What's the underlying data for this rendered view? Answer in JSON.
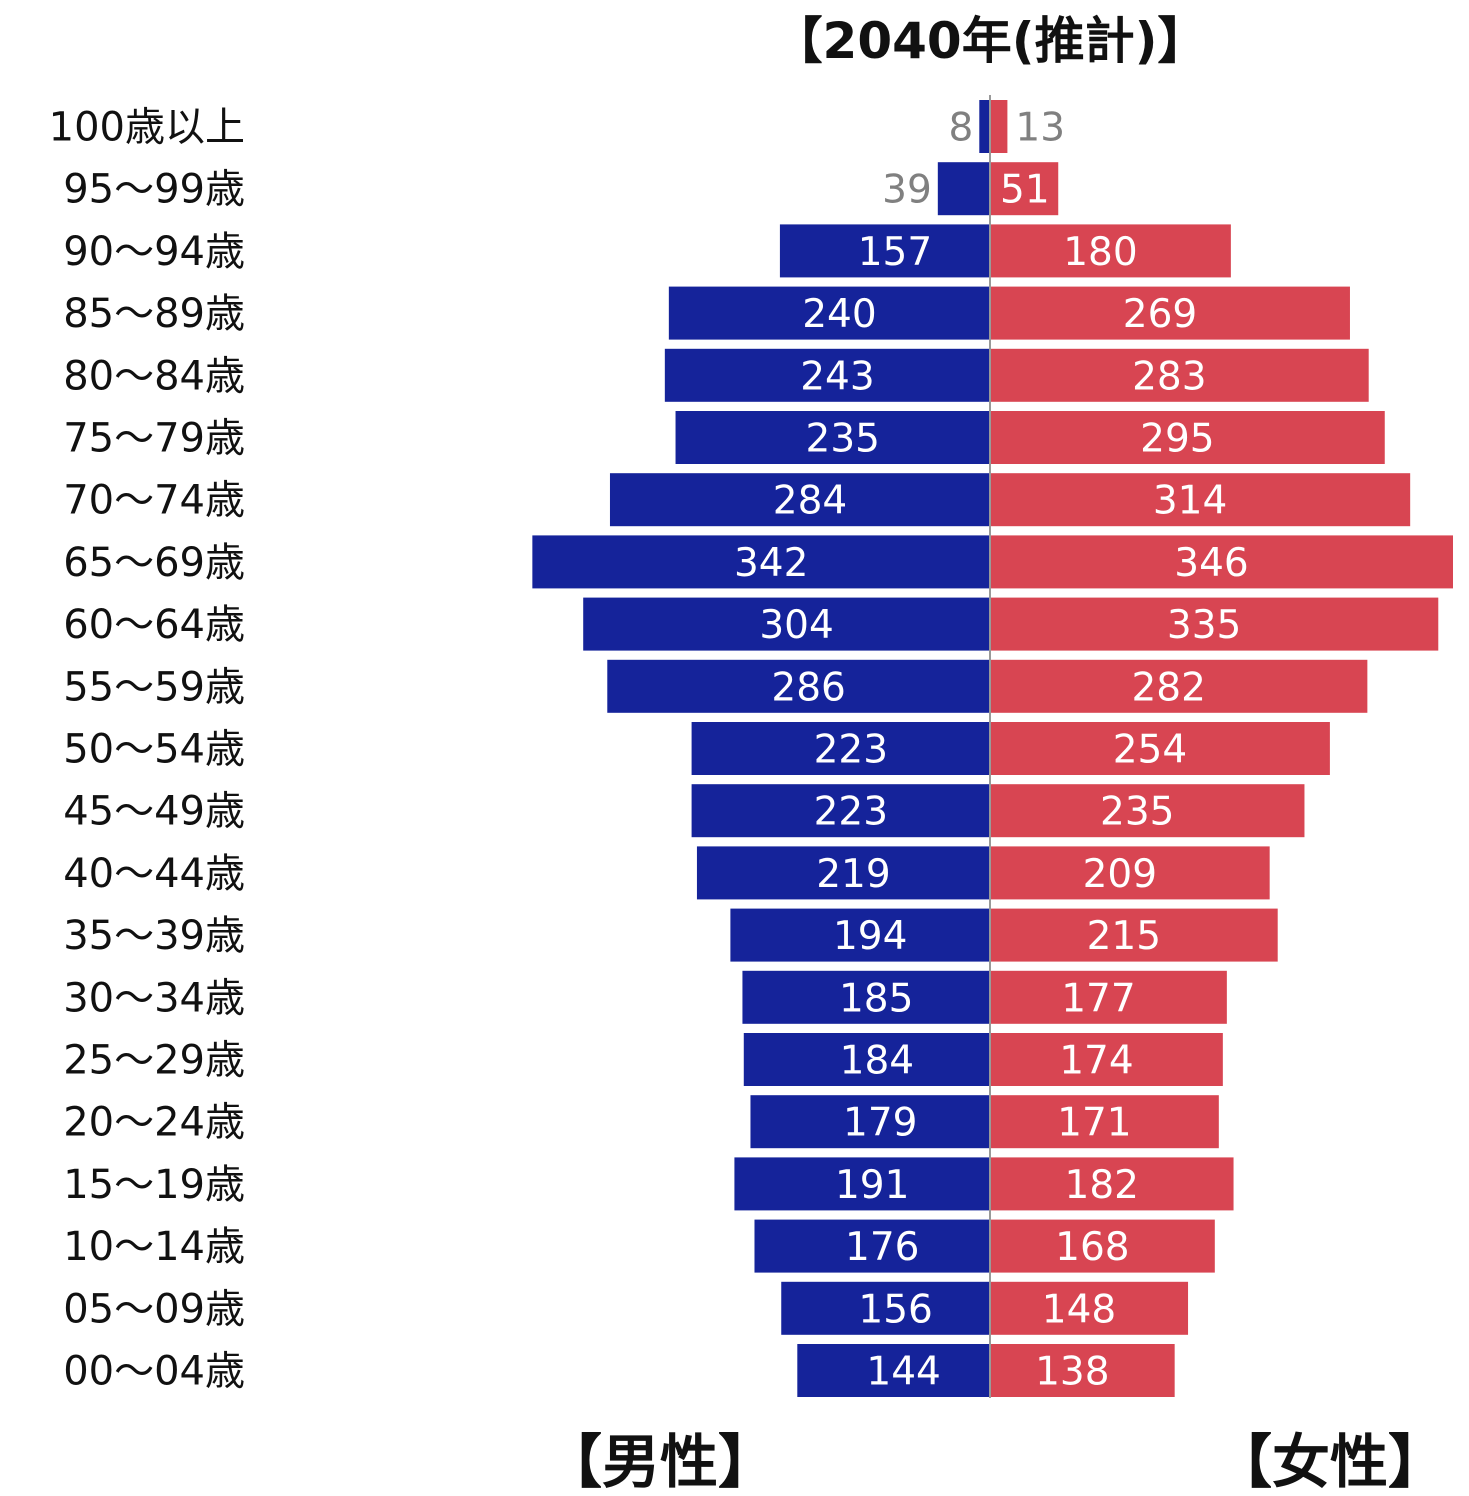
{
  "chart_data": {
    "type": "bar",
    "orientation": "population-pyramid",
    "title": "【2040年(推計)】",
    "categories": [
      "100歳以上",
      "95～99歳",
      "90～94歳",
      "85～89歳",
      "80～84歳",
      "75～79歳",
      "70～74歳",
      "65～69歳",
      "60～64歳",
      "55～59歳",
      "50～54歳",
      "45～49歳",
      "40～44歳",
      "35～39歳",
      "30～34歳",
      "25～29歳",
      "20～24歳",
      "15～19歳",
      "10～14歳",
      "05～09歳",
      "00～04歳"
    ],
    "series": [
      {
        "name": "【男性】",
        "side": "left",
        "color": "#15239a",
        "values": [
          8,
          39,
          157,
          240,
          243,
          235,
          284,
          342,
          304,
          286,
          223,
          223,
          219,
          194,
          185,
          184,
          179,
          191,
          176,
          156,
          144
        ]
      },
      {
        "name": "【女性】",
        "side": "right",
        "color": "#d84552",
        "values": [
          13,
          51,
          180,
          269,
          283,
          295,
          314,
          346,
          335,
          282,
          254,
          235,
          209,
          215,
          177,
          174,
          171,
          182,
          168,
          148,
          138
        ]
      }
    ],
    "xlim": [
      0,
      346
    ],
    "grid": false,
    "legend": "bottom labels under each side",
    "outside_label_color": "#808080",
    "inside_label_color": "#ffffff"
  }
}
